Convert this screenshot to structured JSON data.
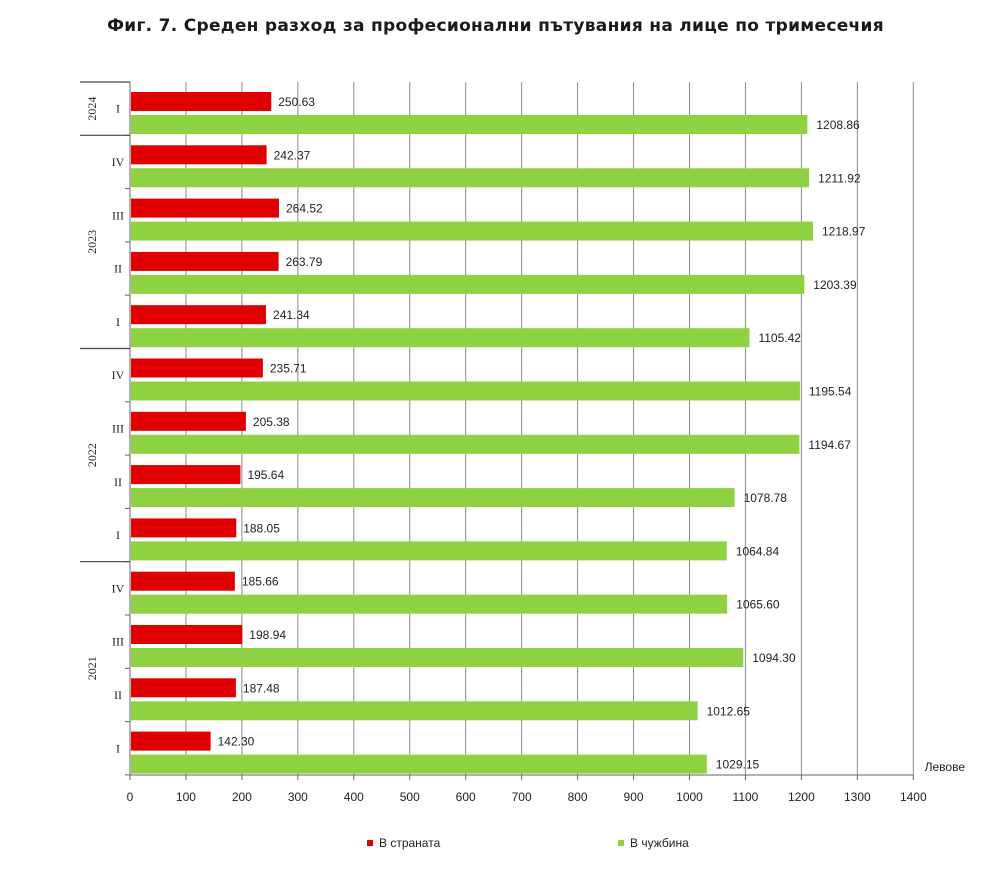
{
  "chart_data": {
    "type": "bar",
    "orientation": "horizontal",
    "title": "Фиг. 7. Среден разход за професионални пътувания на лице по тримесечия",
    "xlabel": "Левове",
    "xlim": [
      0,
      1400
    ],
    "xticks": [
      "0",
      "100",
      "200",
      "300",
      "400",
      "500",
      "600",
      "700",
      "800",
      "900",
      "1000",
      "1100",
      "1200",
      "1300",
      "1400"
    ],
    "grid": "vertical",
    "legend_position": "bottom",
    "groups": [
      {
        "year": "2024",
        "quarters": [
          "I"
        ]
      },
      {
        "year": "2023",
        "quarters": [
          "IV",
          "III",
          "II",
          "I"
        ]
      },
      {
        "year": "2022",
        "quarters": [
          "IV",
          "III",
          "II",
          "I"
        ]
      },
      {
        "year": "2021",
        "quarters": [
          "IV",
          "III",
          "II",
          "I"
        ]
      }
    ],
    "series": [
      {
        "name": "В страната",
        "color": "#e00000",
        "values": [
          250.63,
          242.37,
          264.52,
          263.79,
          241.34,
          235.71,
          205.38,
          195.64,
          188.05,
          185.66,
          198.94,
          187.48,
          142.3
        ],
        "labels": [
          "250.63",
          "242.37",
          "264.52",
          "263.79",
          "241.34",
          "235.71",
          "205.38",
          "195.64",
          "188.05",
          "185.66",
          "198.94",
          "187.48",
          "142.30"
        ]
      },
      {
        "name": "В чужбина",
        "color": "#8ed241",
        "values": [
          1208.86,
          1211.92,
          1218.97,
          1203.39,
          1105.42,
          1195.54,
          1194.67,
          1078.78,
          1064.84,
          1065.6,
          1094.3,
          1012.65,
          1029.15
        ],
        "labels": [
          "1208.86",
          "1211.92",
          "1218.97",
          "1203.39",
          "1105.42",
          "1195.54",
          "1194.67",
          "1078.78",
          "1064.84",
          "1065.60",
          "1094.30",
          "1012.65",
          "1029.15"
        ]
      }
    ]
  }
}
